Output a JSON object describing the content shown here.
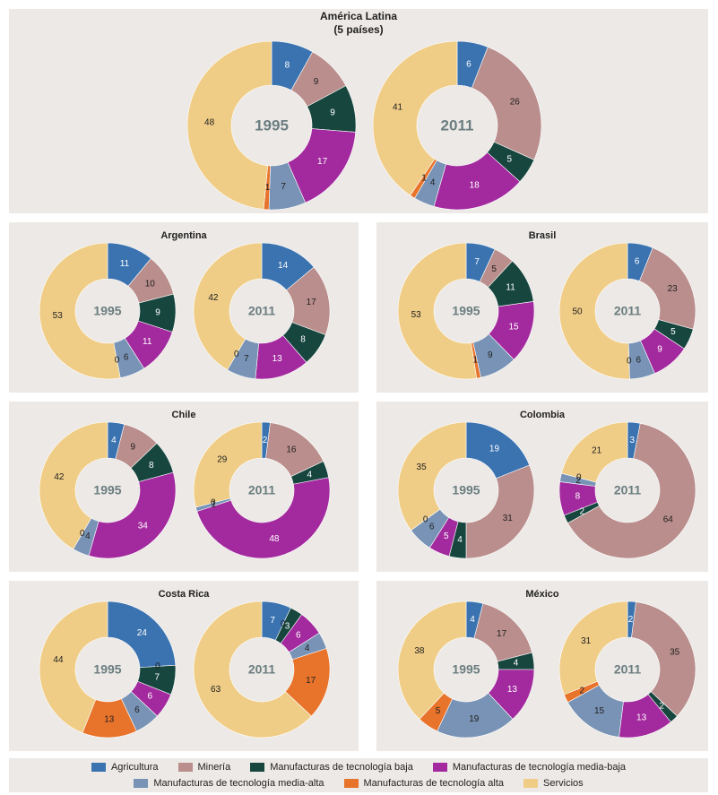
{
  "chart_data": [
    {
      "type": "donut",
      "title": "América Latina",
      "subtitle": "(5 países)",
      "rings": [
        {
          "label": "1995",
          "values": [
            8,
            9,
            9,
            17,
            7,
            1,
            48
          ]
        },
        {
          "label": "2011",
          "values": [
            6,
            26,
            5,
            18,
            4,
            1,
            41
          ]
        }
      ]
    },
    {
      "type": "donut",
      "title": "Argentina",
      "rings": [
        {
          "label": "1995",
          "values": [
            11,
            10,
            9,
            11,
            6,
            0,
            53
          ]
        },
        {
          "label": "2011",
          "values": [
            14,
            17,
            8,
            13,
            7,
            0,
            42
          ]
        }
      ]
    },
    {
      "type": "donut",
      "title": "Brasil",
      "rings": [
        {
          "label": "1995",
          "values": [
            7,
            5,
            11,
            15,
            9,
            1,
            53
          ]
        },
        {
          "label": "2011",
          "values": [
            6,
            23,
            5,
            9,
            6,
            0,
            50
          ]
        }
      ]
    },
    {
      "type": "donut",
      "title": "Chile",
      "rings": [
        {
          "label": "1995",
          "values": [
            4,
            9,
            8,
            34,
            4,
            0,
            42
          ]
        },
        {
          "label": "2011",
          "values": [
            2,
            16,
            4,
            48,
            1,
            0,
            29
          ]
        }
      ]
    },
    {
      "type": "donut",
      "title": "Colombia",
      "rings": [
        {
          "label": "1995",
          "values": [
            19,
            31,
            4,
            5,
            6,
            0,
            35
          ]
        },
        {
          "label": "2011",
          "values": [
            3,
            64,
            2,
            8,
            2,
            0,
            21
          ]
        }
      ]
    },
    {
      "type": "donut",
      "title": "Costa Rica",
      "rings": [
        {
          "label": "1995",
          "values": [
            24,
            0,
            7,
            6,
            6,
            13,
            44
          ]
        },
        {
          "label": "2011",
          "values": [
            7,
            0,
            3,
            6,
            4,
            17,
            63
          ]
        }
      ]
    },
    {
      "type": "donut",
      "title": "México",
      "rings": [
        {
          "label": "1995",
          "values": [
            4,
            17,
            4,
            13,
            19,
            5,
            38
          ]
        },
        {
          "label": "2011",
          "values": [
            2,
            35,
            2,
            13,
            15,
            2,
            31
          ]
        }
      ]
    }
  ],
  "legend": {
    "items": [
      {
        "name": "Agricultura",
        "color": "#3a73b0"
      },
      {
        "name": "Minería",
        "color": "#b98e8c"
      },
      {
        "name": "Manufacturas de tecnología baja",
        "color": "#17463f"
      },
      {
        "name": "Manufacturas de tecnología media-baja",
        "color": "#a32a9e"
      },
      {
        "name": "Manufacturas de tecnología media-alta",
        "color": "#7893b5"
      },
      {
        "name": "Manufacturas de tecnología alta",
        "color": "#e8732a"
      },
      {
        "name": "Servicios",
        "color": "#f0cd86"
      }
    ]
  }
}
